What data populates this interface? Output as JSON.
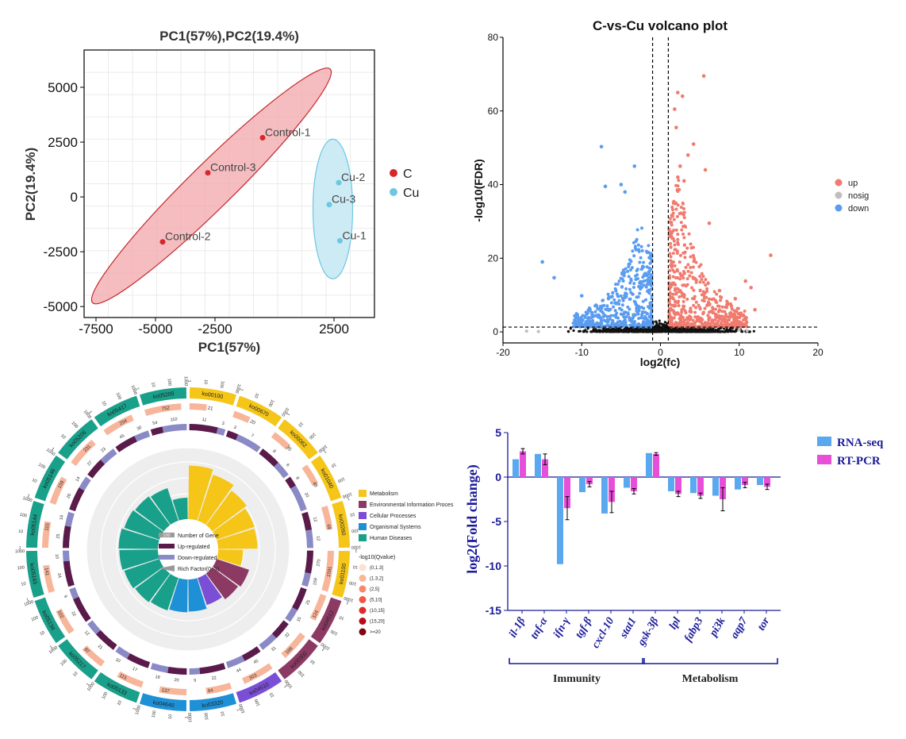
{
  "colors": {
    "control_fill": "#f3a7ab",
    "control_stroke": "#c22a30",
    "control_point": "#d6282c",
    "cu_fill": "#cdebf5",
    "cu_stroke": "#6cc7e3",
    "cu_point": "#6cc7e3",
    "volcano_up": "#f07b6e",
    "volcano_down": "#5a9cf0",
    "volcano_nosig": "#bfbfbf",
    "rnaseq": "#5aa8f0",
    "rtpcr": "#e84fd8",
    "metabolism": "#f5c518",
    "env_info": "#8c3a63",
    "cellular": "#7a4fd6",
    "organismal": "#1e90d6",
    "human_disease": "#19a08a",
    "ring_dark": "#5a1a4a",
    "ring_light": "#8a8ac6",
    "ring_num_bg": "#f7b59a"
  },
  "chart_data": [
    {
      "type": "scatter",
      "title": "PC1(57%),PC2(19.4%)",
      "xlabel": "PC1(57%)",
      "ylabel": "PC2(19.4%)",
      "xlim": [
        -8000,
        4200
      ],
      "ylim": [
        -5500,
        6700
      ],
      "xticks": [
        -7500,
        -5000,
        -2500,
        2500
      ],
      "yticks": [
        -5000,
        -2500,
        0,
        2500,
        5000
      ],
      "xtick_labels": [
        "-7500",
        "-5000",
        "-2500",
        "2500"
      ],
      "ytick_labels": [
        "-5000",
        "-2500",
        "0",
        "2500",
        "5000"
      ],
      "grid": true,
      "legend_position": "right",
      "legend": [
        "C",
        "Cu"
      ],
      "series": [
        {
          "name": "C",
          "points": [
            {
              "label": "Control-1",
              "x": -500,
              "y": 2700
            },
            {
              "label": "Control-3",
              "x": -2800,
              "y": 1100
            },
            {
              "label": "Control-2",
              "x": -4700,
              "y": -2050
            }
          ]
        },
        {
          "name": "Cu",
          "points": [
            {
              "label": "Cu-2",
              "x": 2700,
              "y": 650
            },
            {
              "label": "Cu-3",
              "x": 2300,
              "y": -350
            },
            {
              "label": "Cu-1",
              "x": 2750,
              "y": -2000
            }
          ]
        }
      ]
    },
    {
      "type": "scatter",
      "title": "C-vs-Cu volcano plot",
      "xlabel": "log2(fc)",
      "ylabel": "-log10(FDR)",
      "xlim": [
        -20,
        20
      ],
      "ylim": [
        -3,
        80
      ],
      "xticks": [
        -20,
        -10,
        0,
        10,
        20
      ],
      "yticks": [
        0,
        20,
        40,
        60,
        80
      ],
      "xtick_labels": [
        "-20",
        "-10",
        "0",
        "10",
        "20"
      ],
      "ytick_labels": [
        "0",
        "20",
        "40",
        "60",
        "80"
      ],
      "thresholds": {
        "x": [
          -1,
          1
        ],
        "y": 1.3
      },
      "legend_position": "right",
      "legend": [
        "up",
        "nosig",
        "down"
      ],
      "highlight_points": {
        "up": [
          [
            5.5,
            69.5
          ],
          [
            2.2,
            65
          ],
          [
            2.8,
            64
          ],
          [
            1.8,
            60.5
          ],
          [
            2,
            55.5
          ],
          [
            4.2,
            51
          ],
          [
            3.5,
            48
          ],
          [
            2.5,
            45
          ],
          [
            5.7,
            44
          ],
          [
            3,
            41
          ],
          [
            2.2,
            42
          ],
          [
            6.2,
            29.5
          ],
          [
            14,
            20.8
          ],
          [
            11.5,
            12
          ],
          [
            7.5,
            11.2
          ],
          [
            10.8,
            13.8
          ],
          [
            9.5,
            9
          ],
          [
            12,
            6
          ]
        ],
        "down": [
          [
            -7.5,
            50.3
          ],
          [
            -3.3,
            45
          ],
          [
            -4.5,
            38
          ],
          [
            -5,
            40
          ],
          [
            -7,
            39.5
          ],
          [
            -15,
            19
          ],
          [
            -13.5,
            14.7
          ],
          [
            -10,
            9.8
          ]
        ],
        "nosig": [
          [
            -17,
            0.2
          ],
          [
            -15.5,
            0.1
          ],
          [
            10,
            0.5
          ],
          [
            11,
            0.3
          ]
        ]
      }
    },
    {
      "type": "pie",
      "subtype": "circular-enrichment",
      "categories": [
        "ko00100",
        "ko00670",
        "ko00062",
        "ko01040",
        "ko00260",
        "ko01100",
        "ko04512",
        "ko00300",
        "ko04510",
        "ko03320",
        "ko04640",
        "ko05133",
        "ko05217",
        "ko05134",
        "ko05165",
        "ko05144",
        "ko05146",
        "ko05206",
        "ko05417",
        "ko05200"
      ],
      "class": [
        "Metabolism",
        "Metabolism",
        "Metabolism",
        "Metabolism",
        "Metabolism",
        "Metabolism",
        "Environmental Information Process",
        "Environmental Information Process",
        "Cellular Processes",
        "Organismal Systems",
        "Organismal Systems",
        "Human Diseases",
        "Human Diseases",
        "Human Diseases",
        "Human Diseases",
        "Human Diseases",
        "Human Diseases",
        "Human Diseases",
        "Human Diseases",
        "Human Diseases"
      ],
      "background_genes": [
        "21",
        "20",
        "35",
        "48",
        "69",
        "1591",
        "124",
        "186",
        "303",
        "94",
        "137",
        "115",
        "87",
        "102",
        "141",
        "115",
        "159",
        "231",
        "294",
        "752"
      ],
      "up_regulated": [
        "11",
        "3",
        "8",
        "8",
        "12",
        "270",
        "25",
        "32",
        "45",
        "22",
        "20",
        "17",
        "21",
        "22",
        "24",
        "25",
        "26",
        "27",
        "45",
        "54"
      ],
      "down_regulated": [
        "3",
        "7",
        "6",
        "20",
        "12",
        "159",
        "15",
        "31",
        "44",
        "9",
        "18",
        "10",
        "12",
        "9",
        "10",
        "16",
        "14",
        "23",
        "30",
        "110"
      ],
      "rich_factor": [
        0.75,
        0.68,
        0.6,
        0.56,
        0.55,
        0.35,
        0.48,
        0.45,
        0.4,
        0.45,
        0.46,
        0.48,
        0.5,
        0.52,
        0.54,
        0.55,
        0.52,
        0.5,
        0.48,
        0.3
      ],
      "legend": [
        "Metabolism",
        "Environmental Information Proces",
        "Cellular Processes",
        "Organismal Systems",
        "Human Diseases"
      ],
      "legend_items": [
        "Number of Gene",
        "Up-regulated",
        "Down-regulated",
        "Rich Factor(0~1)"
      ],
      "center_sample": "100",
      "qvalue_title": "-log10(Qvalue)",
      "qvalue_bins": [
        "(0,1.3]",
        "(1.3,2]",
        "(2,5]",
        "(5,10]",
        "(10,15]",
        "(15,20]",
        ">=20"
      ],
      "qvalue_colors": [
        "#fde0d2",
        "#f9b79a",
        "#f48a6a",
        "#ee5a45",
        "#de2d26",
        "#b50d1c",
        "#7f0513"
      ],
      "outer_scale_labels": [
        "1",
        "10",
        "100",
        "1000"
      ]
    },
    {
      "type": "bar",
      "ylabel": "log2(Fold change)",
      "ylim": [
        -15,
        5
      ],
      "yticks": [
        5,
        0,
        -5,
        -10,
        -15
      ],
      "ytick_labels": [
        "5",
        "0",
        "-5",
        "-10",
        "-15"
      ],
      "categories": [
        "il-1β",
        "tnf-α",
        "ifn-γ",
        "tgf-β",
        "cxcl-10",
        "stat1",
        "gsk-3β",
        "lpl",
        "fabp3",
        "pi3k",
        "aqp7",
        "tor"
      ],
      "groups": [
        {
          "label": "Immunity",
          "from": 0,
          "to": 5
        },
        {
          "label": "Metabolism",
          "from": 6,
          "to": 11
        }
      ],
      "legend_position": "top-right",
      "series": [
        {
          "name": "RNA-seq",
          "values": [
            2.0,
            2.6,
            -9.8,
            -1.7,
            -4.1,
            -1.2,
            2.7,
            -1.6,
            -1.8,
            -2.1,
            -1.4,
            -0.9
          ]
        },
        {
          "name": "RT-PCR",
          "values": [
            2.9,
            2.0,
            -3.5,
            -0.8,
            -2.8,
            -1.6,
            2.6,
            -1.9,
            -2.1,
            -2.5,
            -0.9,
            -1.1
          ],
          "errors": [
            0.3,
            0.6,
            1.3,
            0.3,
            1.2,
            0.3,
            0.15,
            0.3,
            0.3,
            1.3,
            0.3,
            0.3
          ]
        }
      ]
    }
  ]
}
